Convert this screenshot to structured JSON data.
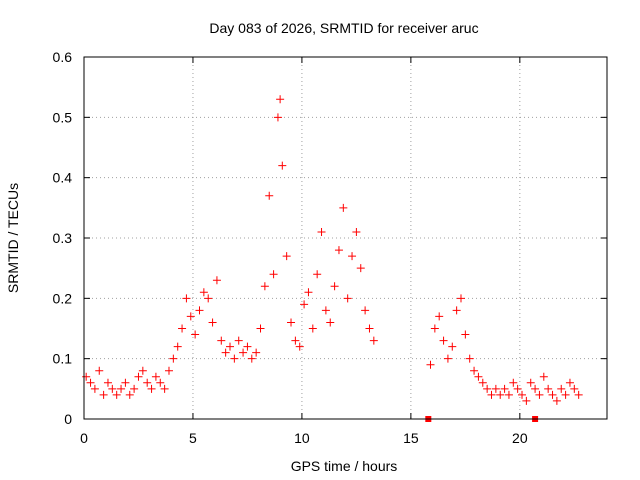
{
  "chart_data": {
    "type": "scatter",
    "title": "Day 083 of 2026, SRMTID for receiver aruc",
    "xlabel": "GPS time / hours",
    "ylabel": "SRMTID / TECUs",
    "xlim": [
      0,
      24
    ],
    "ylim": [
      0,
      0.6
    ],
    "x_ticks": [
      0,
      5,
      10,
      15,
      20
    ],
    "x_tick_labels": [
      "0",
      "5",
      "10",
      "15",
      "20"
    ],
    "y_ticks": [
      0,
      0.1,
      0.2,
      0.3,
      0.4,
      0.5,
      0.6
    ],
    "y_tick_labels": [
      "0",
      "0.1",
      "0.2",
      "0.3",
      "0.4",
      "0.5",
      "0.6"
    ],
    "grid": true,
    "marker": "+",
    "series_color": "#ff0000",
    "series": [
      {
        "name": "SRMTID",
        "x": [
          0.1,
          0.3,
          0.5,
          0.7,
          0.9,
          1.1,
          1.3,
          1.5,
          1.7,
          1.9,
          2.1,
          2.3,
          2.5,
          2.7,
          2.9,
          3.1,
          3.3,
          3.5,
          3.7,
          3.9,
          4.1,
          4.3,
          4.5,
          4.7,
          4.9,
          5.1,
          5.3,
          5.5,
          5.7,
          5.9,
          6.1,
          6.3,
          6.5,
          6.7,
          6.9,
          7.1,
          7.3,
          7.5,
          7.7,
          7.9,
          8.1,
          8.3,
          8.5,
          8.7,
          8.9,
          9.0,
          9.1,
          9.3,
          9.5,
          9.7,
          9.9,
          10.1,
          10.3,
          10.5,
          10.7,
          10.9,
          11.1,
          11.3,
          11.5,
          11.7,
          11.9,
          12.1,
          12.3,
          12.5,
          12.7,
          12.9,
          13.1,
          13.3,
          15.9,
          16.1,
          16.3,
          16.5,
          16.7,
          16.9,
          17.1,
          17.3,
          17.5,
          17.7,
          17.9,
          18.1,
          18.3,
          18.5,
          18.7,
          18.9,
          19.1,
          19.3,
          19.5,
          19.7,
          19.9,
          20.1,
          20.3,
          20.5,
          20.7,
          20.9,
          21.1,
          21.3,
          21.5,
          21.7,
          21.9,
          22.1,
          22.3,
          22.5,
          22.7
        ],
        "y": [
          0.07,
          0.06,
          0.05,
          0.08,
          0.04,
          0.06,
          0.05,
          0.04,
          0.05,
          0.06,
          0.04,
          0.05,
          0.07,
          0.08,
          0.06,
          0.05,
          0.07,
          0.06,
          0.05,
          0.08,
          0.1,
          0.12,
          0.15,
          0.2,
          0.17,
          0.14,
          0.18,
          0.21,
          0.2,
          0.16,
          0.23,
          0.13,
          0.11,
          0.12,
          0.1,
          0.13,
          0.11,
          0.12,
          0.1,
          0.11,
          0.15,
          0.22,
          0.37,
          0.24,
          0.5,
          0.53,
          0.42,
          0.27,
          0.16,
          0.13,
          0.12,
          0.19,
          0.21,
          0.15,
          0.24,
          0.31,
          0.18,
          0.16,
          0.22,
          0.28,
          0.35,
          0.2,
          0.27,
          0.31,
          0.25,
          0.18,
          0.15,
          0.13,
          0.09,
          0.15,
          0.17,
          0.13,
          0.1,
          0.12,
          0.18,
          0.2,
          0.14,
          0.1,
          0.08,
          0.07,
          0.06,
          0.05,
          0.04,
          0.05,
          0.04,
          0.05,
          0.04,
          0.06,
          0.05,
          0.04,
          0.03,
          0.06,
          0.05,
          0.04,
          0.07,
          0.05,
          0.04,
          0.03,
          0.05,
          0.04,
          0.06,
          0.05,
          0.04
        ]
      }
    ],
    "gap_markers": {
      "x": [
        15.8,
        20.7
      ],
      "y": [
        0,
        0
      ]
    }
  }
}
